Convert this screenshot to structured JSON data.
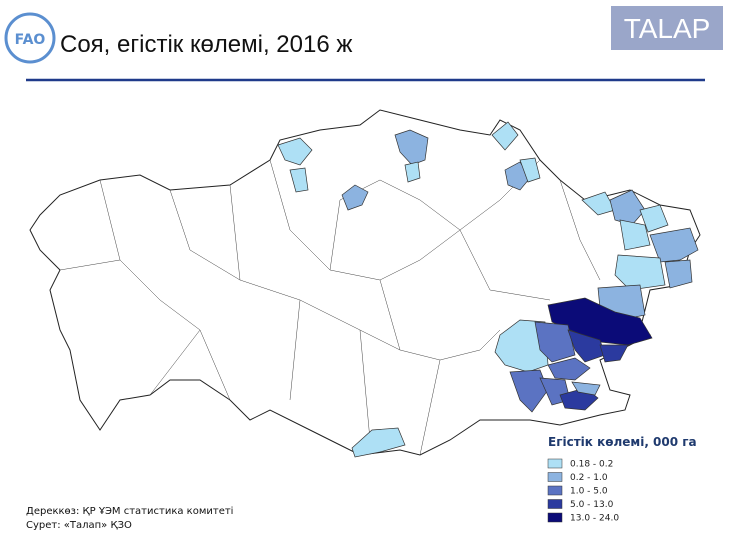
{
  "header": {
    "title": "Соя, егістік көлемі, 2016 ж",
    "brand": "TALAP",
    "logo": "FAO"
  },
  "legend": {
    "title": "Егістік көлемі, 000 га",
    "items": [
      {
        "label": "0.18 - 0.2",
        "color": "#aee0f5"
      },
      {
        "label": "0.2 - 1.0",
        "color": "#8cb3e0"
      },
      {
        "label": "1.0 - 5.0",
        "color": "#5b73c2"
      },
      {
        "label": "5.0 - 13.0",
        "color": "#2b3a9f"
      },
      {
        "label": "13.0 - 24.0",
        "color": "#0b0b78"
      }
    ]
  },
  "footer": {
    "source": "Дереккөз: ҚР ҰЭМ статистика комитеті",
    "credit": "Сурет: «Талап» ҚЗО"
  }
}
